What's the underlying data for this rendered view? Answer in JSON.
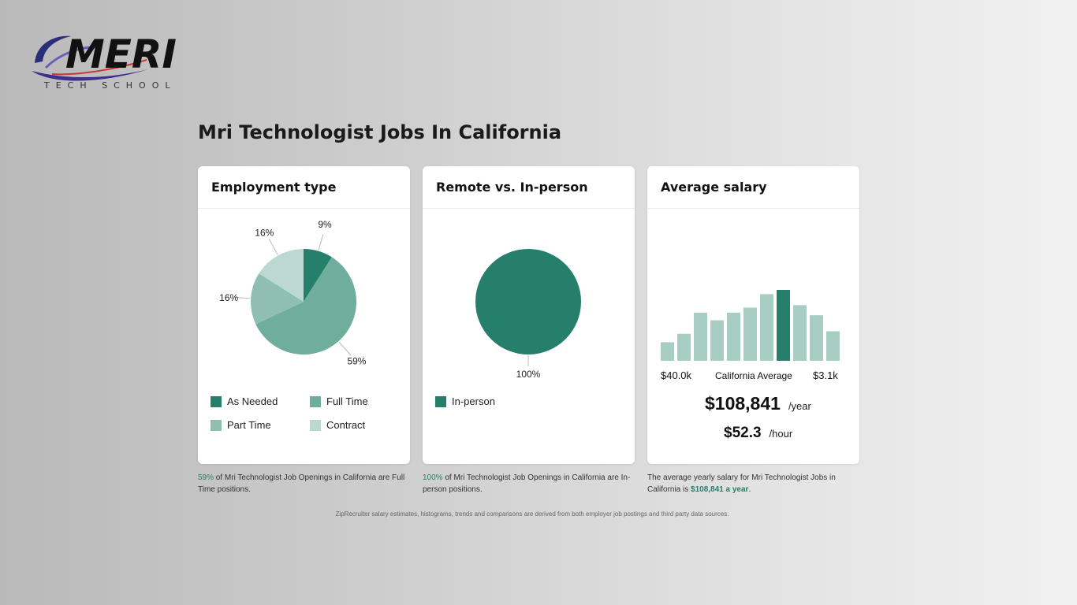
{
  "logo": {
    "name": "MERI",
    "sub": "TECH SCHOOL"
  },
  "page_title": "Mri Technologist Jobs In California",
  "colors": {
    "as_needed": "#267f6b",
    "full_time": "#6fad9c",
    "part_time": "#8fbfb1",
    "contract": "#bbd9d1",
    "in_person": "#267f6b",
    "bar_light": "#a8cdc3",
    "bar_highlight": "#267f6b"
  },
  "cards": {
    "employment": {
      "title": "Employment type",
      "legend": [
        "As Needed",
        "Full Time",
        "Part Time",
        "Contract"
      ],
      "caption_pct": "59%",
      "caption_text": " of Mri Technologist Job Openings in California are Full Time positions."
    },
    "remote": {
      "title": "Remote vs. In-person",
      "legend": [
        "In-person"
      ],
      "caption_pct": "100%",
      "caption_text": " of Mri Technologist Job Openings in California are In-person positions."
    },
    "salary": {
      "title": "Average salary",
      "axis_left": "$40.0k",
      "axis_mid": "California Average",
      "axis_right": "$3.1k",
      "yearly": "$108,841",
      "yearly_unit": "/year",
      "hourly": "$52.3",
      "hourly_unit": "/hour",
      "caption_text": "The average yearly salary for Mri Technologist Jobs in California is ",
      "caption_value": "$108,841 a year",
      "caption_end": "."
    }
  },
  "footnote": "ZipRecruiter salary estimates, histograms, trends and comparisons are derived from both employer job postings and third party data sources.",
  "chart_data": [
    {
      "type": "pie",
      "title": "Employment type",
      "slices": [
        {
          "name": "As Needed",
          "value": 9,
          "label": "9%"
        },
        {
          "name": "Full Time",
          "value": 59,
          "label": "59%"
        },
        {
          "name": "Part Time",
          "value": 16,
          "label": "16%"
        },
        {
          "name": "Contract",
          "value": 16,
          "label": "16%"
        }
      ]
    },
    {
      "type": "pie",
      "title": "Remote vs. In-person",
      "slices": [
        {
          "name": "In-person",
          "value": 100,
          "label": "100%"
        }
      ]
    },
    {
      "type": "bar",
      "title": "Average salary",
      "xlabel_left": "$40.0k",
      "xlabel_mid": "California Average",
      "xlabel_right": "$3.1k",
      "relative_values": [
        22,
        32,
        57,
        48,
        57,
        63,
        79,
        84,
        66,
        54,
        35
      ],
      "highlight_index": 7
    }
  ]
}
